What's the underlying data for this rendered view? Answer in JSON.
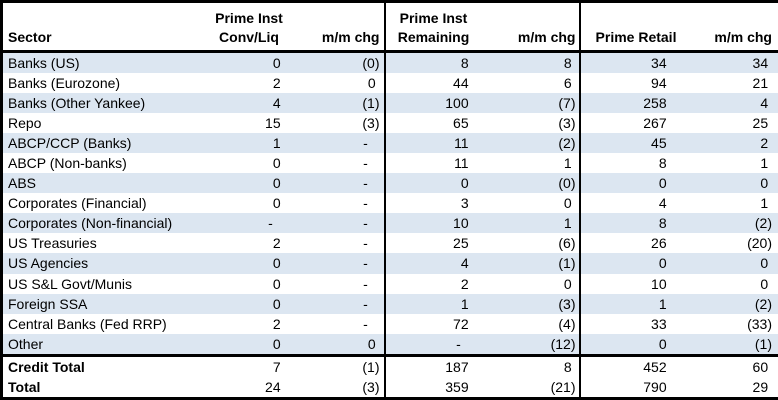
{
  "colors": {
    "row_shade": "#DCE6F1",
    "border": "#000000",
    "background": "#FFFFFF",
    "text": "#000000"
  },
  "table": {
    "header": {
      "sector": "Sector",
      "group1_line1": "Prime Inst",
      "group1_line2": "Conv/Liq",
      "chg1": "m/m chg",
      "group2_line1": "Prime Inst",
      "group2_line2": "Remaining",
      "chg2": "m/m chg",
      "group3": "Prime Retail",
      "chg3": "m/m chg"
    }
  },
  "chart_data": {
    "type": "table",
    "columns": [
      "Sector",
      "Prime Inst Conv/Liq",
      "m/m chg",
      "Prime Inst Remaining",
      "m/m chg",
      "Prime Retail",
      "m/m chg"
    ],
    "rows": [
      [
        "Banks (US)",
        "0",
        "(0)",
        "8",
        "8",
        "34",
        "34"
      ],
      [
        "Banks (Eurozone)",
        "2",
        "0",
        "44",
        "6",
        "94",
        "21"
      ],
      [
        "Banks (Other Yankee)",
        "4",
        "(1)",
        "100",
        "(7)",
        "258",
        "4"
      ],
      [
        "Repo",
        "15",
        "(3)",
        "65",
        "(3)",
        "267",
        "25"
      ],
      [
        "ABCP/CCP (Banks)",
        "1",
        "-",
        "11",
        "(2)",
        "45",
        "2"
      ],
      [
        "ABCP (Non-banks)",
        "0",
        "-",
        "11",
        "1",
        "8",
        "1"
      ],
      [
        "ABS",
        "0",
        "-",
        "0",
        "(0)",
        "0",
        "0"
      ],
      [
        "Corporates (Financial)",
        "0",
        "-",
        "3",
        "0",
        "4",
        "1"
      ],
      [
        "Corporates (Non-financial)",
        "-",
        "-",
        "10",
        "1",
        "8",
        "(2)"
      ],
      [
        "US Treasuries",
        "2",
        "-",
        "25",
        "(6)",
        "26",
        "(20)"
      ],
      [
        "US Agencies",
        "0",
        "-",
        "4",
        "(1)",
        "0",
        "0"
      ],
      [
        "US S&L Govt/Munis",
        "0",
        "-",
        "2",
        "0",
        "10",
        "0"
      ],
      [
        "Foreign SSA",
        "0",
        "-",
        "1",
        "(3)",
        "1",
        "(2)"
      ],
      [
        "Central Banks (Fed RRP)",
        "2",
        "-",
        "72",
        "(4)",
        "33",
        "(33)"
      ],
      [
        "Other",
        "0",
        "0",
        "-",
        "(12)",
        "0",
        "(1)"
      ]
    ],
    "total_rows": [
      [
        "Credit Total",
        "7",
        "(1)",
        "187",
        "8",
        "452",
        "60"
      ],
      [
        "Total",
        "24",
        "(3)",
        "359",
        "(21)",
        "790",
        "29"
      ]
    ],
    "layout_hints": {
      "shading": "alternating rows shaded starting with first data row",
      "negative_format": "parentheses",
      "group_separators": "thick vertical borders before Prime Inst Remaining and Prime Retail groups"
    }
  }
}
